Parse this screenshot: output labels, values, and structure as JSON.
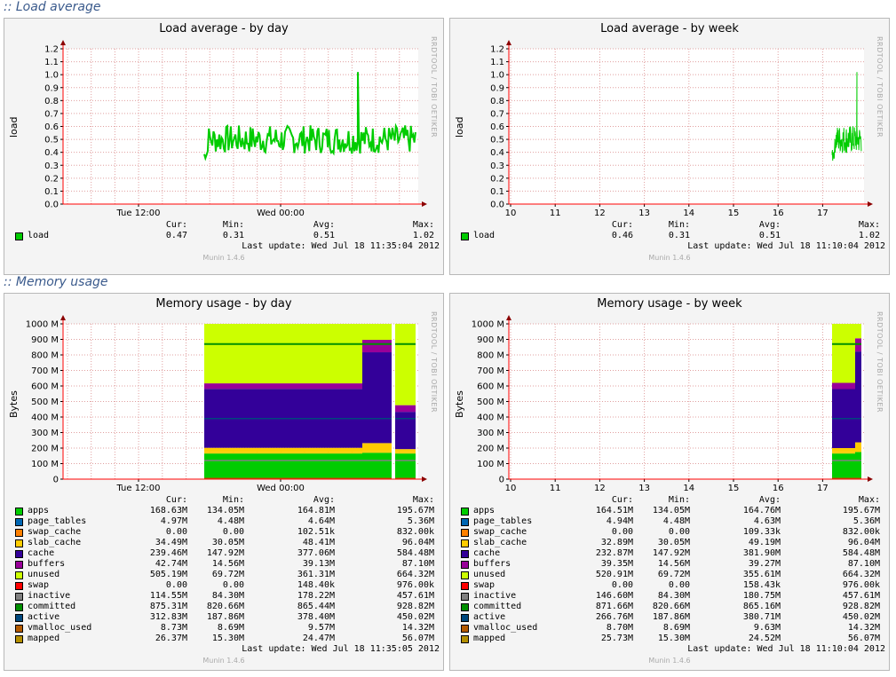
{
  "sections": [
    {
      "title": ":: Load average"
    },
    {
      "title": ":: Memory usage"
    }
  ],
  "colors": {
    "grid": "#e0a0a0",
    "axis": "#ff0000",
    "load": "#00cc00"
  },
  "load_day": {
    "title": "Load average - by day",
    "ylabel": "load",
    "rrd": "RRDTOOL / TOBI OETIKER",
    "yticks": [
      "0.0",
      "0.1",
      "0.2",
      "0.3",
      "0.4",
      "0.5",
      "0.6",
      "0.7",
      "0.8",
      "0.9",
      "1.0",
      "1.1",
      "1.2"
    ],
    "xticks": [
      "Tue 12:00",
      "Wed 00:00"
    ],
    "headers": [
      "Cur:",
      "Min:",
      "Avg:",
      "Max:"
    ],
    "legend": [
      {
        "name": "load",
        "color": "#00cc00",
        "cur": "0.47",
        "min": "0.31",
        "avg": "0.51",
        "max": "1.02"
      }
    ],
    "last_update": "Last update:  Wed Jul 18 11:35:04 2012",
    "footer": "Munin 1.4.6"
  },
  "load_week": {
    "title": "Load average - by week",
    "ylabel": "load",
    "rrd": "RRDTOOL / TOBI OETIKER",
    "yticks": [
      "0.0",
      "0.1",
      "0.2",
      "0.3",
      "0.4",
      "0.5",
      "0.6",
      "0.7",
      "0.8",
      "0.9",
      "1.0",
      "1.1",
      "1.2"
    ],
    "xticks": [
      "10",
      "11",
      "12",
      "13",
      "14",
      "15",
      "16",
      "17"
    ],
    "headers": [
      "Cur:",
      "Min:",
      "Avg:",
      "Max:"
    ],
    "legend": [
      {
        "name": "load",
        "color": "#00cc00",
        "cur": "0.46",
        "min": "0.31",
        "avg": "0.51",
        "max": "1.02"
      }
    ],
    "last_update": "Last update:  Wed Jul 18 11:10:04 2012",
    "footer": "Munin 1.4.6"
  },
  "mem_day": {
    "title": "Memory usage - by day",
    "ylabel": "Bytes",
    "rrd": "RRDTOOL / TOBI OETIKER",
    "yticks": [
      "0",
      "100 M",
      "200 M",
      "300 M",
      "400 M",
      "500 M",
      "600 M",
      "700 M",
      "800 M",
      "900 M",
      "1000 M"
    ],
    "xticks": [
      "Tue 12:00",
      "Wed 00:00"
    ],
    "headers": [
      "Cur:",
      "Min:",
      "Avg:",
      "Max:"
    ],
    "legend": [
      {
        "name": "apps",
        "color": "#00cc00",
        "cur": "168.63M",
        "min": "134.05M",
        "avg": "164.81M",
        "max": "195.67M"
      },
      {
        "name": "page_tables",
        "color": "#0066b3",
        "cur": "4.97M",
        "min": "4.48M",
        "avg": "4.64M",
        "max": "5.36M"
      },
      {
        "name": "swap_cache",
        "color": "#ff8000",
        "cur": "0.00",
        "min": "0.00",
        "avg": "102.51k",
        "max": "832.00k"
      },
      {
        "name": "slab_cache",
        "color": "#ffcc00",
        "cur": "34.49M",
        "min": "30.05M",
        "avg": "48.41M",
        "max": "96.04M"
      },
      {
        "name": "cache",
        "color": "#330099",
        "cur": "239.46M",
        "min": "147.92M",
        "avg": "377.06M",
        "max": "584.48M"
      },
      {
        "name": "buffers",
        "color": "#990099",
        "cur": "42.74M",
        "min": "14.56M",
        "avg": "39.13M",
        "max": "87.10M"
      },
      {
        "name": "unused",
        "color": "#ccff00",
        "cur": "505.19M",
        "min": "69.72M",
        "avg": "361.31M",
        "max": "664.32M"
      },
      {
        "name": "swap",
        "color": "#ff0000",
        "cur": "0.00",
        "min": "0.00",
        "avg": "148.40k",
        "max": "976.00k"
      },
      {
        "name": "inactive",
        "color": "#808080",
        "cur": "114.55M",
        "min": "84.30M",
        "avg": "178.22M",
        "max": "457.61M"
      },
      {
        "name": "committed",
        "color": "#008f00",
        "cur": "875.31M",
        "min": "820.66M",
        "avg": "865.44M",
        "max": "928.82M"
      },
      {
        "name": "active",
        "color": "#00487d",
        "cur": "312.83M",
        "min": "187.86M",
        "avg": "378.40M",
        "max": "450.02M"
      },
      {
        "name": "vmalloc_used",
        "color": "#b35a00",
        "cur": "8.73M",
        "min": "8.69M",
        "avg": "9.57M",
        "max": "14.32M"
      },
      {
        "name": "mapped",
        "color": "#b38f00",
        "cur": "26.37M",
        "min": "15.30M",
        "avg": "24.47M",
        "max": "56.07M"
      }
    ],
    "last_update": "Last update:  Wed Jul 18 11:35:05 2012",
    "footer": "Munin 1.4.6"
  },
  "mem_week": {
    "title": "Memory usage - by week",
    "ylabel": "Bytes",
    "rrd": "RRDTOOL / TOBI OETIKER",
    "yticks": [
      "0",
      "100 M",
      "200 M",
      "300 M",
      "400 M",
      "500 M",
      "600 M",
      "700 M",
      "800 M",
      "900 M",
      "1000 M"
    ],
    "xticks": [
      "10",
      "11",
      "12",
      "13",
      "14",
      "15",
      "16",
      "17"
    ],
    "headers": [
      "Cur:",
      "Min:",
      "Avg:",
      "Max:"
    ],
    "legend": [
      {
        "name": "apps",
        "color": "#00cc00",
        "cur": "164.51M",
        "min": "134.05M",
        "avg": "164.76M",
        "max": "195.67M"
      },
      {
        "name": "page_tables",
        "color": "#0066b3",
        "cur": "4.94M",
        "min": "4.48M",
        "avg": "4.63M",
        "max": "5.36M"
      },
      {
        "name": "swap_cache",
        "color": "#ff8000",
        "cur": "0.00",
        "min": "0.00",
        "avg": "109.33k",
        "max": "832.00k"
      },
      {
        "name": "slab_cache",
        "color": "#ffcc00",
        "cur": "32.89M",
        "min": "30.05M",
        "avg": "49.19M",
        "max": "96.04M"
      },
      {
        "name": "cache",
        "color": "#330099",
        "cur": "232.87M",
        "min": "147.92M",
        "avg": "381.90M",
        "max": "584.48M"
      },
      {
        "name": "buffers",
        "color": "#990099",
        "cur": "39.35M",
        "min": "14.56M",
        "avg": "39.27M",
        "max": "87.10M"
      },
      {
        "name": "unused",
        "color": "#ccff00",
        "cur": "520.91M",
        "min": "69.72M",
        "avg": "355.61M",
        "max": "664.32M"
      },
      {
        "name": "swap",
        "color": "#ff0000",
        "cur": "0.00",
        "min": "0.00",
        "avg": "158.43k",
        "max": "976.00k"
      },
      {
        "name": "inactive",
        "color": "#808080",
        "cur": "146.60M",
        "min": "84.30M",
        "avg": "180.75M",
        "max": "457.61M"
      },
      {
        "name": "committed",
        "color": "#008f00",
        "cur": "871.66M",
        "min": "820.66M",
        "avg": "865.16M",
        "max": "928.82M"
      },
      {
        "name": "active",
        "color": "#00487d",
        "cur": "266.76M",
        "min": "187.86M",
        "avg": "380.71M",
        "max": "450.02M"
      },
      {
        "name": "vmalloc_used",
        "color": "#b35a00",
        "cur": "8.70M",
        "min": "8.69M",
        "avg": "9.63M",
        "max": "14.32M"
      },
      {
        "name": "mapped",
        "color": "#b38f00",
        "cur": "25.73M",
        "min": "15.30M",
        "avg": "24.52M",
        "max": "56.07M"
      }
    ],
    "last_update": "Last update:  Wed Jul 18 11:10:04 2012",
    "footer": "Munin 1.4.6"
  }
}
